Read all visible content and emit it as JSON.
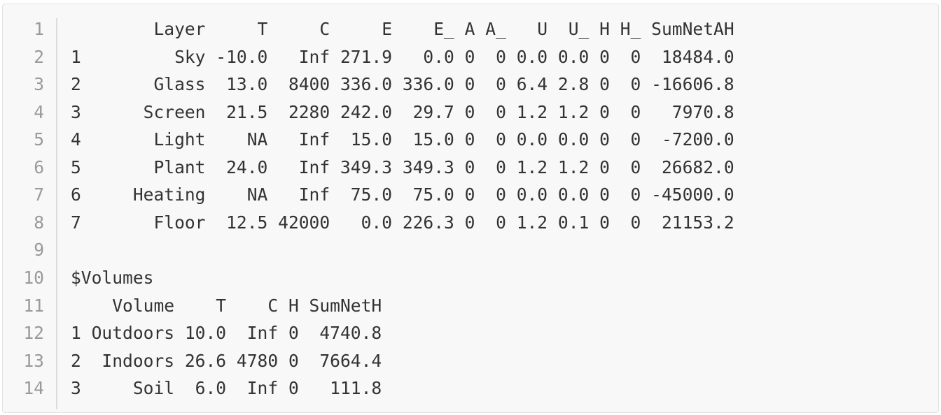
{
  "lines": [
    {
      "number": 1,
      "text": "        Layer     T     C     E    E_ A A_   U  U_ H H_ SumNetAH"
    },
    {
      "number": 2,
      "text": "1         Sky -10.0   Inf 271.9   0.0 0  0 0.0 0.0 0  0  18484.0"
    },
    {
      "number": 3,
      "text": "2       Glass  13.0  8400 336.0 336.0 0  0 6.4 2.8 0  0 -16606.8"
    },
    {
      "number": 4,
      "text": "3      Screen  21.5  2280 242.0  29.7 0  0 1.2 1.2 0  0   7970.8"
    },
    {
      "number": 5,
      "text": "4       Light    NA   Inf  15.0  15.0 0  0 0.0 0.0 0  0  -7200.0"
    },
    {
      "number": 6,
      "text": "5       Plant  24.0   Inf 349.3 349.3 0  0 1.2 1.2 0  0  26682.0"
    },
    {
      "number": 7,
      "text": "6     Heating    NA   Inf  75.0  75.0 0  0 0.0 0.0 0  0 -45000.0"
    },
    {
      "number": 8,
      "text": "7       Floor  12.5 42000   0.0 226.3 0  0 1.2 0.1 0  0  21153.2"
    },
    {
      "number": 9
    },
    {
      "number": 10,
      "text": "$Volumes"
    },
    {
      "number": 11,
      "text": "    Volume    T    C H SumNetH"
    },
    {
      "number": 12,
      "text": "1 Outdoors 10.0  Inf 0  4740.8"
    },
    {
      "number": 13,
      "text": "2  Indoors 26.6 4780 0  7664.4"
    },
    {
      "number": 14,
      "text": "3     Soil  6.0  Inf 0   111.8"
    }
  ]
}
